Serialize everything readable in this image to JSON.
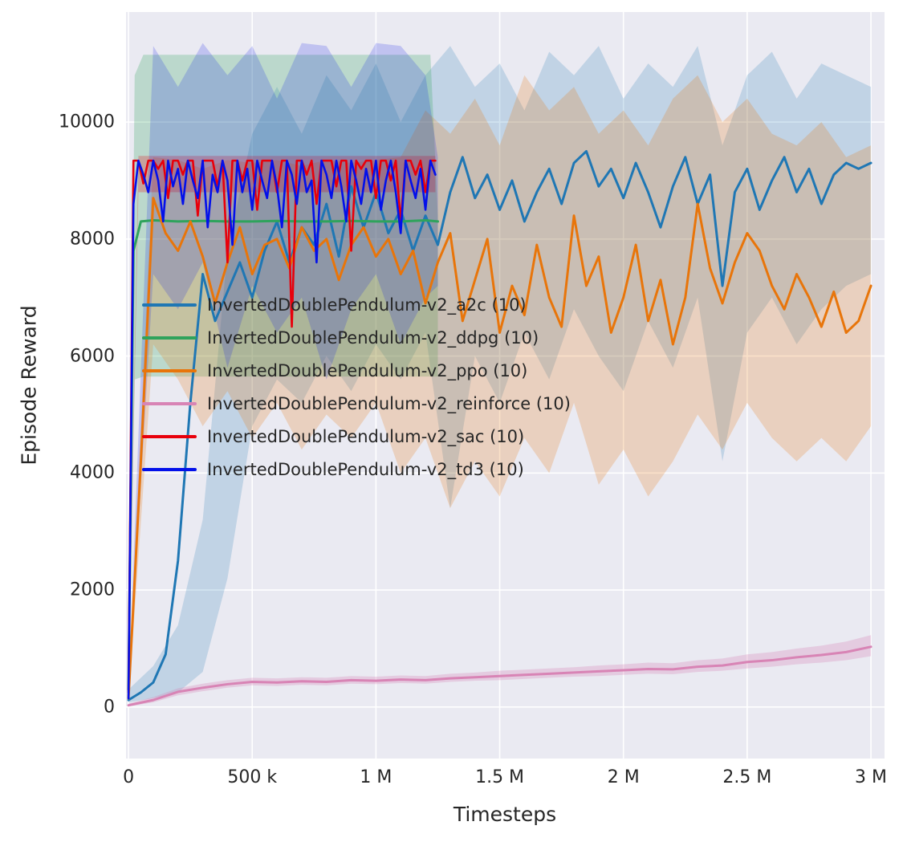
{
  "figure": {
    "background": "#ffffff",
    "plot_background": "#eaeaf2",
    "grid_color": "#ffffff",
    "text_color": "#262626"
  },
  "chart_data": {
    "type": "line",
    "title": "",
    "xlabel": "Timesteps",
    "ylabel": "Episode Reward",
    "xlim": [
      -10000,
      3055000
    ],
    "ylim": [
      -880,
      11880
    ],
    "grid": true,
    "legend_position": "inside center-left",
    "x_ticks": [
      {
        "v": 0,
        "label": "0"
      },
      {
        "v": 500000,
        "label": "500 k"
      },
      {
        "v": 1000000,
        "label": "1 M"
      },
      {
        "v": 1500000,
        "label": "1.5 M"
      },
      {
        "v": 2000000,
        "label": "2 M"
      },
      {
        "v": 2500000,
        "label": "2.5 M"
      },
      {
        "v": 3000000,
        "label": "3 M"
      }
    ],
    "y_ticks": [
      {
        "v": 0,
        "label": "0"
      },
      {
        "v": 2000,
        "label": "2000"
      },
      {
        "v": 4000,
        "label": "4000"
      },
      {
        "v": 6000,
        "label": "6000"
      },
      {
        "v": 8000,
        "label": "8000"
      },
      {
        "v": 10000,
        "label": "10000"
      }
    ],
    "series": [
      {
        "key": "a2c",
        "label": "InvertedDoublePendulum-v2_a2c (10)",
        "color": "#1f77b4",
        "line_width": 3,
        "band_opacity": 0.2,
        "x": [
          0,
          50000,
          100000,
          150000,
          200000,
          250000,
          300000,
          350000,
          400000,
          450000,
          500000,
          550000,
          600000,
          650000,
          700000,
          750000,
          800000,
          850000,
          900000,
          950000,
          1000000,
          1050000,
          1100000,
          1150000,
          1200000,
          1250000,
          1300000,
          1350000,
          1400000,
          1450000,
          1500000,
          1550000,
          1600000,
          1650000,
          1700000,
          1750000,
          1800000,
          1850000,
          1900000,
          1950000,
          2000000,
          2050000,
          2100000,
          2150000,
          2200000,
          2250000,
          2300000,
          2350000,
          2400000,
          2450000,
          2500000,
          2550000,
          2600000,
          2650000,
          2700000,
          2750000,
          2800000,
          2850000,
          2900000,
          2950000,
          3000000
        ],
        "y": [
          120,
          250,
          420,
          900,
          2500,
          5200,
          7400,
          6600,
          7100,
          7600,
          7000,
          7800,
          8300,
          7600,
          8200,
          7900,
          8600,
          7700,
          8900,
          8200,
          8800,
          8100,
          8500,
          7800,
          8400,
          7900,
          8800,
          9400,
          8700,
          9100,
          8500,
          9000,
          8300,
          8800,
          9200,
          8600,
          9300,
          9500,
          8900,
          9200,
          8700,
          9300,
          8800,
          8200,
          8900,
          9400,
          8600,
          9100,
          7200,
          8800,
          9200,
          8500,
          9000,
          9400,
          8800,
          9200,
          8600,
          9100,
          9300,
          9200,
          9300
        ],
        "band": {
          "x": [
            0,
            100000,
            200000,
            300000,
            400000,
            500000,
            600000,
            700000,
            800000,
            900000,
            1000000,
            1100000,
            1200000,
            1300000,
            1400000,
            1500000,
            1600000,
            1700000,
            1800000,
            1900000,
            2000000,
            2100000,
            2200000,
            2300000,
            2400000,
            2500000,
            2600000,
            2700000,
            2800000,
            2900000,
            3000000
          ],
          "lo": [
            80,
            150,
            250,
            600,
            2200,
            4800,
            5600,
            5200,
            6000,
            5400,
            6200,
            5600,
            6400,
            3400,
            6000,
            5200,
            6400,
            5600,
            6800,
            6000,
            5400,
            6600,
            5800,
            7000,
            4200,
            6400,
            7000,
            6200,
            6800,
            7200,
            7400
          ],
          "hi": [
            300,
            700,
            1400,
            3200,
            7800,
            9800,
            10600,
            9800,
            10800,
            10200,
            11000,
            10000,
            10800,
            11300,
            10600,
            11000,
            10200,
            11200,
            10800,
            11300,
            10400,
            11000,
            10600,
            11300,
            9600,
            10800,
            11200,
            10400,
            11000,
            10800,
            10600
          ]
        }
      },
      {
        "key": "ddpg",
        "label": "InvertedDoublePendulum-v2_ddpg (10)",
        "color": "#2fa35c",
        "line_width": 3,
        "band_opacity": 0.25,
        "x": [
          0,
          20000,
          50000,
          100000,
          200000,
          300000,
          400000,
          500000,
          600000,
          700000,
          800000,
          900000,
          1000000,
          1100000,
          1200000,
          1250000
        ],
        "y": [
          300,
          7800,
          8300,
          8320,
          8300,
          8310,
          8300,
          8300,
          8310,
          8300,
          8300,
          8310,
          8300,
          8300,
          8320,
          8300
        ],
        "band": {
          "x": [
            0,
            25000,
            60000,
            1220000,
            1250000
          ],
          "lo": [
            250,
            5600,
            5650,
            5650,
            5650
          ],
          "hi": [
            350,
            10800,
            11150,
            11150,
            8400
          ]
        }
      },
      {
        "key": "ppo",
        "label": "InvertedDoublePendulum-v2_ppo (10)",
        "color": "#e8750a",
        "line_width": 3,
        "band_opacity": 0.22,
        "x": [
          0,
          50000,
          100000,
          150000,
          200000,
          250000,
          300000,
          350000,
          400000,
          450000,
          500000,
          550000,
          600000,
          650000,
          700000,
          750000,
          800000,
          850000,
          900000,
          950000,
          1000000,
          1050000,
          1100000,
          1150000,
          1200000,
          1250000,
          1300000,
          1350000,
          1400000,
          1450000,
          1500000,
          1550000,
          1600000,
          1650000,
          1700000,
          1750000,
          1800000,
          1850000,
          1900000,
          1950000,
          2000000,
          2050000,
          2100000,
          2150000,
          2200000,
          2250000,
          2300000,
          2350000,
          2400000,
          2450000,
          2500000,
          2550000,
          2600000,
          2650000,
          2700000,
          2750000,
          2800000,
          2850000,
          2900000,
          2950000,
          3000000
        ],
        "y": [
          150,
          4200,
          8700,
          8100,
          7800,
          8300,
          7700,
          6900,
          7600,
          8200,
          7400,
          7900,
          8000,
          7500,
          8200,
          7800,
          8000,
          7300,
          7900,
          8200,
          7700,
          8000,
          7400,
          7800,
          6900,
          7600,
          8100,
          6600,
          7300,
          8000,
          6400,
          7200,
          6700,
          7900,
          7000,
          6500,
          8400,
          7200,
          7700,
          6400,
          7000,
          7900,
          6600,
          7300,
          6200,
          7000,
          8600,
          7500,
          6900,
          7600,
          8100,
          7800,
          7200,
          6800,
          7400,
          7000,
          6500,
          7100,
          6400,
          6600,
          7200
        ],
        "band": {
          "x": [
            0,
            100000,
            200000,
            300000,
            400000,
            500000,
            600000,
            700000,
            800000,
            900000,
            1000000,
            1100000,
            1200000,
            1300000,
            1400000,
            1500000,
            1600000,
            1700000,
            1800000,
            1900000,
            2000000,
            2100000,
            2200000,
            2300000,
            2400000,
            2500000,
            2600000,
            2700000,
            2800000,
            2900000,
            3000000
          ],
          "lo": [
            100,
            6200,
            5600,
            4800,
            5400,
            4600,
            5200,
            4400,
            5000,
            4600,
            5200,
            4000,
            4600,
            3400,
            4200,
            3600,
            4600,
            4000,
            5200,
            3800,
            4400,
            3600,
            4200,
            5000,
            4400,
            5200,
            4600,
            4200,
            4600,
            4200,
            4800
          ],
          "hi": [
            250,
            9400,
            9350,
            9200,
            9350,
            9300,
            9350,
            9250,
            9350,
            9300,
            9350,
            9400,
            10200,
            9800,
            10400,
            9600,
            10800,
            10200,
            10600,
            9800,
            10200,
            9600,
            10400,
            10800,
            10000,
            10400,
            9800,
            9600,
            10000,
            9400,
            9600
          ]
        }
      },
      {
        "key": "reinforce",
        "label": "InvertedDoublePendulum-v2_reinforce (10)",
        "color": "#d884b5",
        "line_width": 3,
        "band_opacity": 0.3,
        "x": [
          0,
          100000,
          200000,
          300000,
          400000,
          500000,
          600000,
          700000,
          800000,
          900000,
          1000000,
          1100000,
          1200000,
          1300000,
          1400000,
          1500000,
          1600000,
          1700000,
          1800000,
          1900000,
          2000000,
          2100000,
          2200000,
          2300000,
          2400000,
          2500000,
          2600000,
          2700000,
          2800000,
          2900000,
          3000000
        ],
        "y": [
          30,
          120,
          260,
          330,
          390,
          430,
          420,
          440,
          430,
          460,
          450,
          470,
          460,
          490,
          510,
          530,
          550,
          570,
          590,
          610,
          630,
          650,
          645,
          690,
          710,
          770,
          800,
          850,
          890,
          940,
          1030
        ],
        "band": {
          "x": [
            0,
            100000,
            200000,
            300000,
            400000,
            500000,
            600000,
            700000,
            800000,
            900000,
            1000000,
            1100000,
            1200000,
            1300000,
            1400000,
            1500000,
            1600000,
            1700000,
            1800000,
            1900000,
            2000000,
            2100000,
            2200000,
            2300000,
            2400000,
            2500000,
            2600000,
            2700000,
            2800000,
            2900000,
            3000000
          ],
          "lo": [
            10,
            80,
            200,
            270,
            330,
            370,
            360,
            380,
            370,
            400,
            390,
            410,
            400,
            430,
            450,
            460,
            480,
            500,
            520,
            530,
            550,
            570,
            560,
            600,
            620,
            660,
            690,
            730,
            760,
            800,
            870
          ],
          "hi": [
            60,
            170,
            320,
            400,
            460,
            500,
            490,
            510,
            500,
            530,
            520,
            540,
            530,
            570,
            590,
            620,
            640,
            660,
            680,
            710,
            730,
            760,
            750,
            800,
            830,
            900,
            940,
            1000,
            1050,
            1120,
            1230
          ]
        }
      },
      {
        "key": "sac",
        "label": "InvertedDoublePendulum-v2_sac (10)",
        "color": "#e8000b",
        "line_width": 2.6,
        "band_opacity": 0.25,
        "x": [
          0,
          20000,
          40000,
          60000,
          80000,
          100000,
          120000,
          140000,
          160000,
          180000,
          200000,
          220000,
          240000,
          260000,
          280000,
          300000,
          320000,
          340000,
          360000,
          380000,
          400000,
          420000,
          440000,
          460000,
          480000,
          500000,
          520000,
          540000,
          560000,
          580000,
          600000,
          620000,
          640000,
          660000,
          680000,
          700000,
          720000,
          740000,
          760000,
          780000,
          800000,
          820000,
          840000,
          860000,
          880000,
          900000,
          920000,
          940000,
          960000,
          980000,
          1000000,
          1020000,
          1040000,
          1060000,
          1080000,
          1100000,
          1120000,
          1140000,
          1160000,
          1180000,
          1200000,
          1220000,
          1240000
        ],
        "y": [
          250,
          9340,
          9340,
          8950,
          9340,
          9340,
          9200,
          9340,
          8700,
          9340,
          9340,
          9100,
          9340,
          9340,
          8400,
          9340,
          9340,
          9340,
          8900,
          9340,
          7600,
          9340,
          9340,
          9000,
          9340,
          9340,
          8500,
          9340,
          9340,
          9340,
          8800,
          9340,
          9340,
          6500,
          9340,
          9340,
          9100,
          9340,
          8600,
          9340,
          9340,
          9340,
          8900,
          9340,
          9340,
          7800,
          9340,
          9200,
          9340,
          9340,
          8700,
          9340,
          9340,
          9000,
          9340,
          8300,
          9340,
          9340,
          9100,
          9340,
          8800,
          9340,
          9340
        ],
        "band": {
          "x": [
            0,
            40000,
            1240000
          ],
          "lo": [
            200,
            8800,
            8800
          ],
          "hi": [
            300,
            9420,
            9420
          ]
        }
      },
      {
        "key": "td3",
        "label": "InvertedDoublePendulum-v2_td3 (10)",
        "color": "#0310ea",
        "line_width": 2.6,
        "band_opacity": 0.18,
        "x": [
          0,
          20000,
          40000,
          60000,
          80000,
          100000,
          120000,
          140000,
          160000,
          180000,
          200000,
          220000,
          240000,
          260000,
          280000,
          300000,
          320000,
          340000,
          360000,
          380000,
          400000,
          420000,
          440000,
          460000,
          480000,
          500000,
          520000,
          540000,
          560000,
          580000,
          600000,
          620000,
          640000,
          660000,
          680000,
          700000,
          720000,
          740000,
          760000,
          780000,
          800000,
          820000,
          840000,
          860000,
          880000,
          900000,
          920000,
          940000,
          960000,
          980000,
          1000000,
          1020000,
          1040000,
          1060000,
          1080000,
          1100000,
          1120000,
          1140000,
          1160000,
          1180000,
          1200000,
          1220000,
          1240000
        ],
        "y": [
          150,
          8600,
          9340,
          9100,
          8800,
          9340,
          9000,
          8300,
          9340,
          8900,
          9200,
          8600,
          9340,
          9000,
          8700,
          9340,
          8200,
          9100,
          8800,
          9340,
          9000,
          7900,
          9340,
          8800,
          9200,
          8500,
          9340,
          9000,
          8700,
          9340,
          8900,
          8200,
          9340,
          9100,
          8600,
          9340,
          8800,
          9000,
          7600,
          9340,
          9100,
          8700,
          9340,
          8900,
          8300,
          9340,
          9000,
          8600,
          9200,
          8800,
          9340,
          8500,
          9000,
          9340,
          8800,
          8100,
          9340,
          9000,
          8700,
          9200,
          8500,
          9340,
          9100
        ],
        "band": {
          "x": [
            0,
            100000,
            200000,
            300000,
            400000,
            500000,
            600000,
            700000,
            800000,
            900000,
            1000000,
            1100000,
            1200000,
            1250000
          ],
          "lo": [
            150,
            7400,
            6800,
            7600,
            5800,
            7200,
            6400,
            7000,
            5600,
            6800,
            7400,
            6200,
            7000,
            7200
          ],
          "hi": [
            200,
            11300,
            10600,
            11350,
            10800,
            11300,
            10400,
            11350,
            11300,
            10600,
            11350,
            11300,
            10800,
            9400
          ]
        }
      }
    ]
  }
}
